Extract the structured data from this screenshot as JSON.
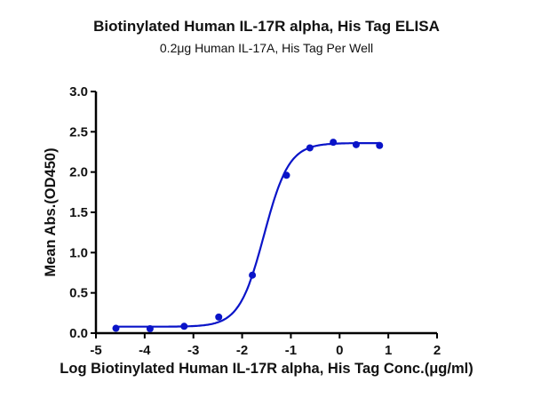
{
  "chart_data": {
    "type": "scatter",
    "title": "Biotinylated Human IL-17R alpha, His Tag ELISA",
    "subtitle": "0.2μg Human IL-17A, His Tag Per Well",
    "xlabel": "Log Biotinylated Human IL-17R alpha, His Tag Conc.(μg/ml)",
    "ylabel": "Mean Abs.(OD450)",
    "xlim": [
      -5,
      2
    ],
    "ylim": [
      0,
      3.0
    ],
    "xticks": [
      "-5",
      "-4",
      "-3",
      "-2",
      "-1",
      "0",
      "1",
      "2"
    ],
    "yticks": [
      "0.0",
      "0.5",
      "1.0",
      "1.5",
      "2.0",
      "2.5",
      "3.0"
    ],
    "grid": false,
    "color": "#0a14c8",
    "points": {
      "x": [
        -4.59,
        -3.89,
        -3.19,
        -2.48,
        -1.79,
        -1.09,
        -0.61,
        -0.13,
        0.34,
        0.82
      ],
      "y": [
        0.06,
        0.055,
        0.085,
        0.2,
        0.72,
        1.96,
        2.3,
        2.37,
        2.34,
        2.33
      ]
    },
    "fit": {
      "model": "4PL",
      "bottom": 0.08,
      "top": 2.36,
      "logEC50": -1.55,
      "hill": 1.7
    }
  }
}
